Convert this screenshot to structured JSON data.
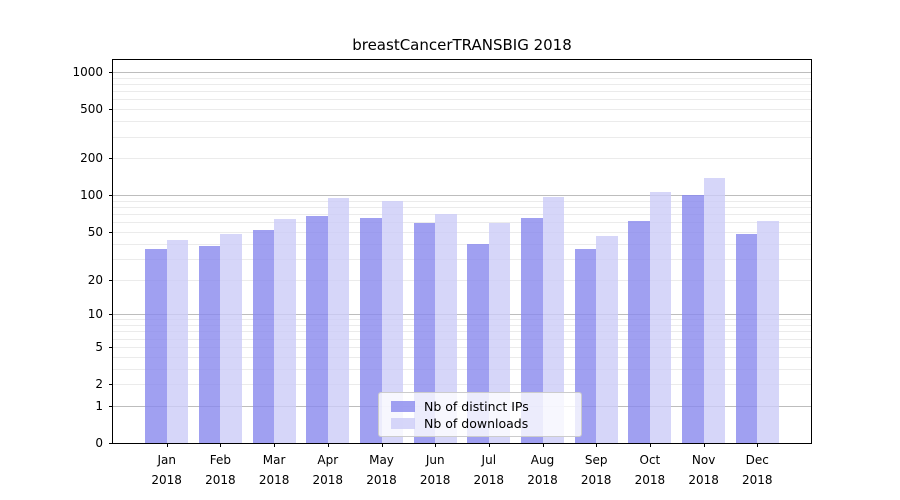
{
  "chart_data": {
    "type": "bar",
    "title": "breastCancerTRANSBIG 2018",
    "categories": [
      "Jan",
      "Feb",
      "Mar",
      "Apr",
      "May",
      "Jun",
      "Jul",
      "Aug",
      "Sep",
      "Oct",
      "Nov",
      "Dec"
    ],
    "category_year": "2018",
    "series": [
      {
        "name": "Nb of distinct IPs",
        "color": "#8888ee",
        "values": [
          36,
          38,
          52,
          67,
          65,
          59,
          40,
          65,
          36,
          61,
          100,
          48
        ]
      },
      {
        "name": "Nb of downloads",
        "color": "#ccccf8",
        "values": [
          43,
          48,
          64,
          95,
          90,
          70,
          59,
          96,
          46,
          107,
          138,
          61
        ]
      }
    ],
    "y_axis": {
      "scale": "log10(value+1)",
      "tick_values": [
        0,
        1,
        2,
        5,
        10,
        20,
        50,
        100,
        200,
        500,
        1000
      ],
      "max": 1250
    },
    "grid": {
      "minor_color": "#ebebeb",
      "major_color": "#bdbdbd",
      "major_values": [
        1,
        10,
        100,
        1000
      ]
    },
    "bar_opacity": 0.8,
    "legend_position": "bottom-center"
  }
}
